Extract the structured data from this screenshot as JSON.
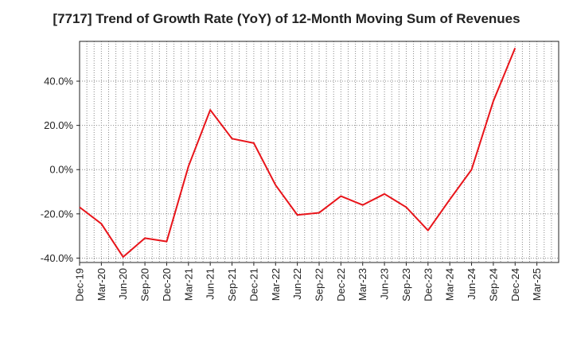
{
  "chart_data": {
    "type": "line",
    "title": "[7717]  Trend of Growth Rate (YoY) of 12-Month Moving Sum of Revenues",
    "xlabel": "",
    "ylabel": "",
    "ylim": [
      -42,
      58
    ],
    "grid": true,
    "x_tick_labels": [
      "Dec-19",
      "Mar-20",
      "Jun-20",
      "Sep-20",
      "Dec-20",
      "Mar-21",
      "Jun-21",
      "Sep-21",
      "Dec-21",
      "Mar-22",
      "Jun-22",
      "Sep-22",
      "Dec-22",
      "Mar-23",
      "Jun-23",
      "Sep-23",
      "Dec-23",
      "Mar-24",
      "Jun-24",
      "Sep-24",
      "Dec-24",
      "Mar-25"
    ],
    "y_ticks": [
      {
        "value": 40,
        "label": "40.0%"
      },
      {
        "value": 20,
        "label": "20.0%"
      },
      {
        "value": 0,
        "label": "0.0%"
      },
      {
        "value": -20,
        "label": "-20.0%"
      },
      {
        "value": -40,
        "label": "-40.0%"
      }
    ],
    "series": [
      {
        "color": "#e8141a",
        "x": [
          "Dec-19",
          "Mar-20",
          "Jun-20",
          "Sep-20",
          "Dec-20",
          "Mar-21",
          "Jun-21",
          "Sep-21",
          "Dec-21",
          "Mar-22",
          "Jun-22",
          "Sep-22",
          "Dec-22",
          "Mar-23",
          "Jun-23",
          "Sep-23",
          "Dec-23",
          "Mar-24",
          "Jun-24",
          "Sep-24",
          "Dec-24"
        ],
        "values": [
          -17,
          -24.5,
          -39.5,
          -31,
          -32.5,
          1.5,
          27,
          14,
          12,
          -7,
          -20.5,
          -19.5,
          -12,
          -16,
          -11,
          -17,
          -27.5,
          -13.5,
          0,
          31,
          55
        ]
      }
    ]
  }
}
